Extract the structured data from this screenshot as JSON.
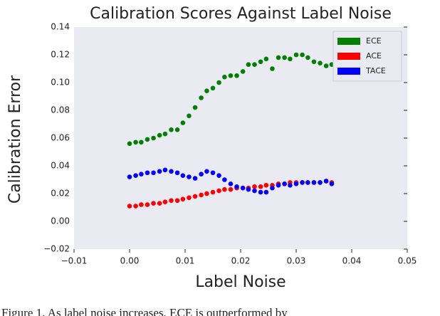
{
  "chart_data": {
    "type": "scatter",
    "title": "Calibration Scores Against Label Noise",
    "xlabel": "Label Noise",
    "ylabel": "Calibration Error",
    "caption": "Figure 1. As label noise increases, ECE is outperformed by",
    "x": [
      0.0,
      0.0011,
      0.0021,
      0.0032,
      0.0043,
      0.0054,
      0.0064,
      0.0075,
      0.0086,
      0.0096,
      0.0107,
      0.0118,
      0.0129,
      0.0139,
      0.015,
      0.0161,
      0.0171,
      0.0182,
      0.0193,
      0.0204,
      0.0214,
      0.0225,
      0.0236,
      0.0246,
      0.0257,
      0.0268,
      0.0279,
      0.0289,
      0.03,
      0.0311,
      0.0321,
      0.0332,
      0.0343,
      0.0354,
      0.0364
    ],
    "series": [
      {
        "name": "ECE",
        "color": "#007f00",
        "values": [
          0.056,
          0.057,
          0.057,
          0.059,
          0.06,
          0.062,
          0.063,
          0.066,
          0.066,
          0.071,
          0.076,
          0.082,
          0.089,
          0.094,
          0.096,
          0.1,
          0.104,
          0.105,
          0.105,
          0.108,
          0.113,
          0.113,
          0.115,
          0.117,
          0.11,
          0.118,
          0.118,
          0.117,
          0.12,
          0.12,
          0.118,
          0.115,
          0.114,
          0.112,
          0.113
        ]
      },
      {
        "name": "ACE",
        "color": "#ff0000",
        "values": [
          0.011,
          0.011,
          0.012,
          0.012,
          0.013,
          0.013,
          0.014,
          0.015,
          0.015,
          0.016,
          0.017,
          0.018,
          0.019,
          0.02,
          0.021,
          0.022,
          0.023,
          0.023,
          0.024,
          0.024,
          0.024,
          0.025,
          0.025,
          0.026,
          0.026,
          0.027,
          0.027,
          0.028,
          0.028,
          0.028,
          0.028,
          0.028,
          0.028,
          0.029,
          0.028
        ]
      },
      {
        "name": "TACE",
        "color": "#0000ff",
        "values": [
          0.032,
          0.033,
          0.034,
          0.035,
          0.035,
          0.036,
          0.037,
          0.036,
          0.035,
          0.033,
          0.032,
          0.031,
          0.034,
          0.036,
          0.035,
          0.033,
          0.03,
          0.027,
          0.025,
          0.024,
          0.023,
          0.022,
          0.021,
          0.021,
          0.024,
          0.026,
          0.027,
          0.026,
          0.027,
          0.028,
          0.028,
          0.028,
          0.028,
          0.029,
          0.027
        ]
      }
    ],
    "xlim": [
      -0.01,
      0.05
    ],
    "xticks": [
      {
        "value": -0.01,
        "label": "−0.01"
      },
      {
        "value": 0,
        "label": "0.00"
      },
      0.01,
      0.02,
      0.03,
      0.04,
      0.05
    ],
    "ylim": [
      -0.02,
      0.14
    ],
    "yticks": [
      {
        "value": -0.02,
        "label": "−0.02"
      },
      {
        "value": 0,
        "label": "0.00"
      },
      0.02,
      0.04,
      0.06,
      0.08,
      {
        "value": 0.1,
        "label": "0.10"
      },
      0.12,
      0.14
    ],
    "legend": "upper right"
  }
}
